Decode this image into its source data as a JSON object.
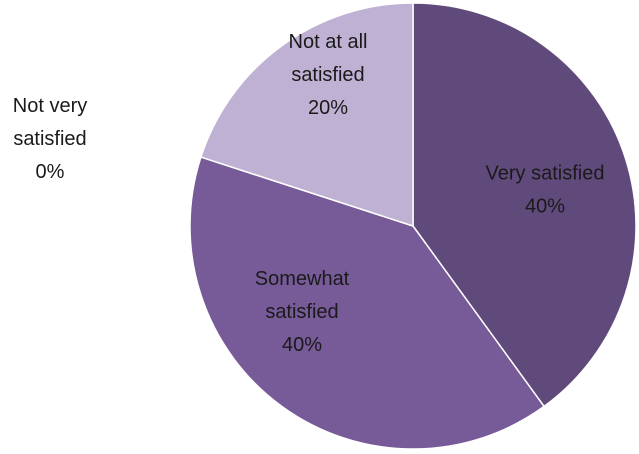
{
  "chart_data": {
    "type": "pie",
    "title": "",
    "slices": [
      {
        "label_lines": [
          "Very satisfied"
        ],
        "percent_label": "40%",
        "value": 40,
        "color": "#604a7b"
      },
      {
        "label_lines": [
          "Somewhat",
          "satisfied"
        ],
        "percent_label": "40%",
        "value": 40,
        "color": "#775a98"
      },
      {
        "label_lines": [
          "Not very",
          "satisfied"
        ],
        "percent_label": "0%",
        "value": 0,
        "color": "#8064a2"
      },
      {
        "label_lines": [
          "Not at all",
          "satisfied"
        ],
        "percent_label": "20%",
        "value": 20,
        "color": "#bfb1d3"
      }
    ],
    "start_angle_deg": 0,
    "direction": "clockwise",
    "slice_border_color": "#ffffff",
    "legend": "none",
    "data_labels": "category-name-and-percent"
  }
}
